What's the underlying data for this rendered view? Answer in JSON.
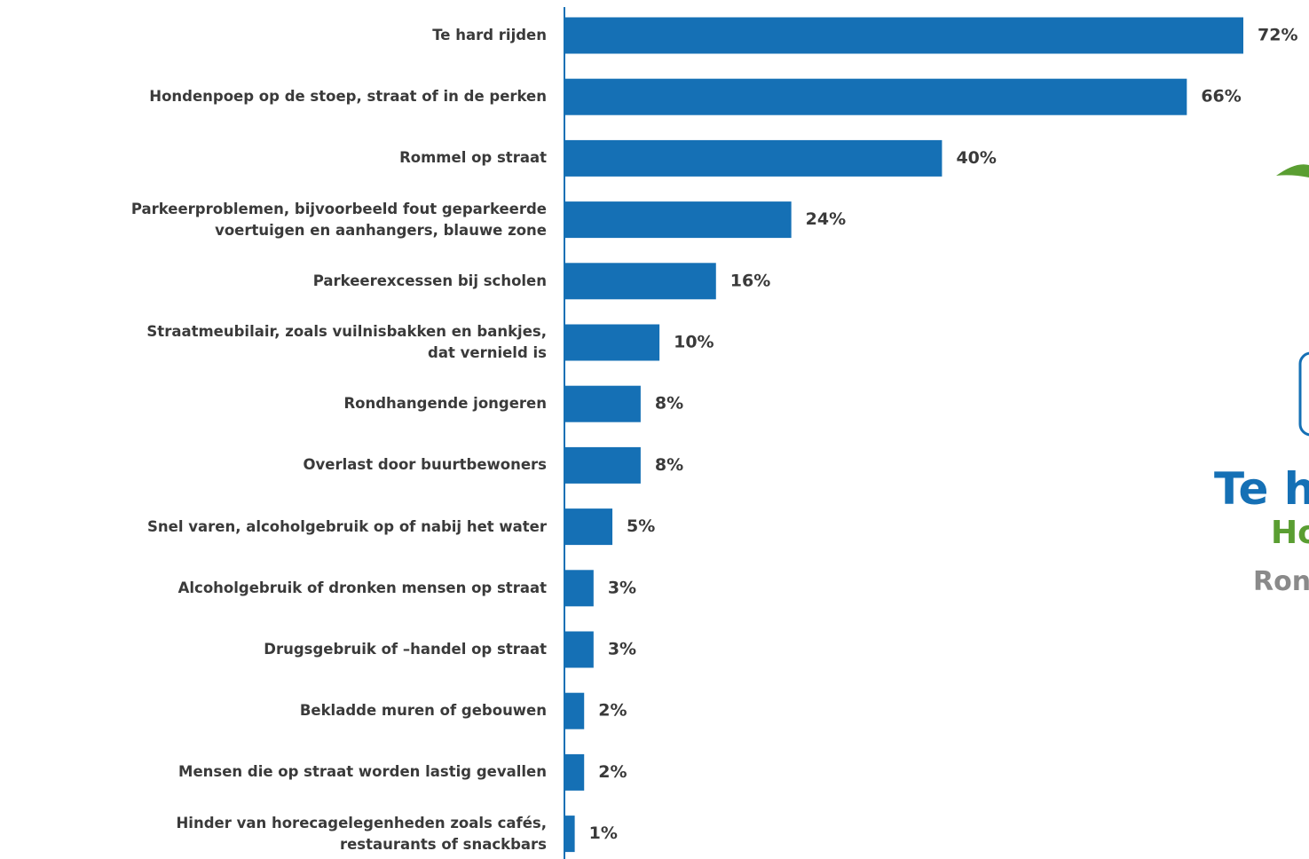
{
  "chart_data": {
    "type": "bar",
    "orientation": "horizontal",
    "color": "#1570b5",
    "categories": [
      "Te hard rijden",
      "Hondenpoep op de stoep, straat of in de perken",
      "Rommel op straat",
      "Parkeerproblemen, bijvoorbeeld fout geparkeerde\nvoertuigen en aanhangers, blauwe zone",
      "Parkeerexcessen bij scholen",
      "Straatmeubilair, zoals vuilnisbakken en bankjes,\ndat vernield is",
      "Rondhangende jongeren",
      "Overlast door buurtbewoners",
      "Snel varen, alcoholgebruik op of nabij het water",
      "Alcoholgebruik of dronken mensen op straat",
      "Drugsgebruik of –handel op straat",
      "Bekladde muren of gebouwen",
      "Mensen die op straat worden lastig gevallen",
      "Hinder van horecagelegenheden zoals cafés,\nrestaurants of snackbars"
    ],
    "values": [
      72,
      66,
      40,
      24,
      16,
      10,
      8,
      8,
      5,
      3,
      3,
      2,
      2,
      1
    ],
    "value_labels": [
      "72%",
      "66%",
      "40%",
      "24%",
      "16%",
      "10%",
      "8%",
      "8%",
      "5%",
      "3%",
      "3%",
      "2%",
      "2%",
      "1%"
    ]
  },
  "side_panel": {
    "lines": [
      "Te h",
      "Ho",
      "Ron"
    ]
  }
}
